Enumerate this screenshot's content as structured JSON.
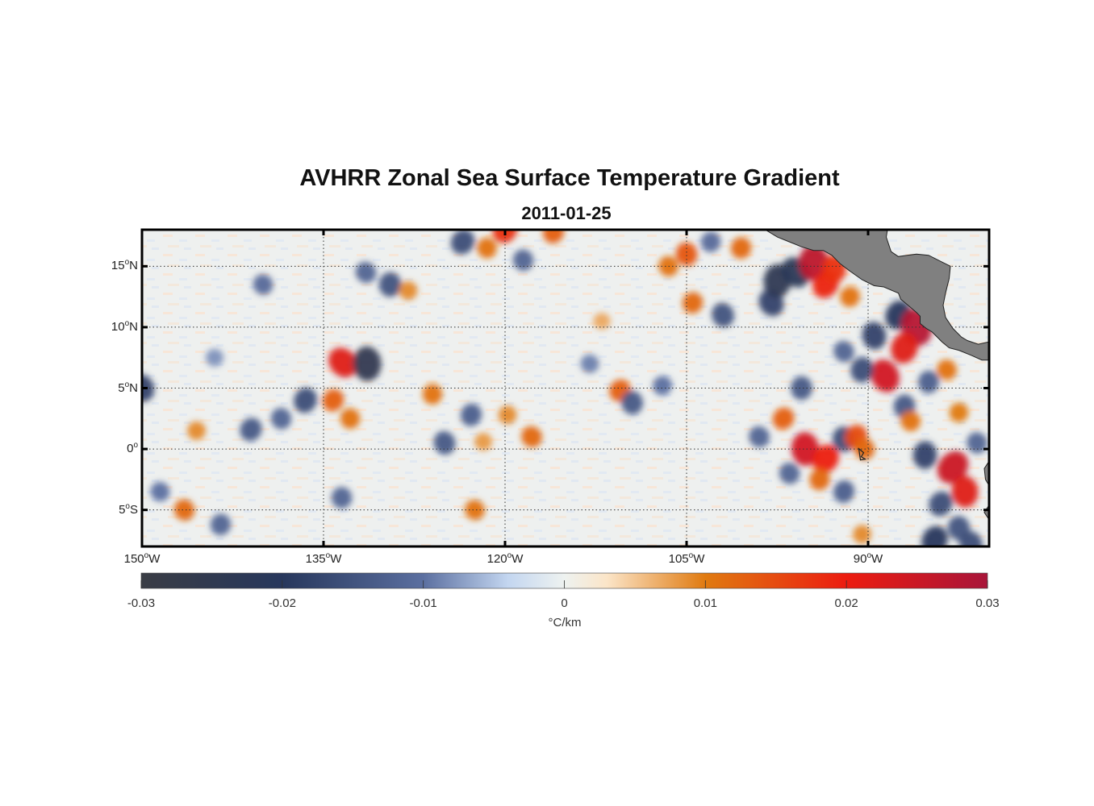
{
  "map": {
    "title": "AVHRR Zonal Sea Surface Temperature Gradient",
    "date": "2011-01-25",
    "region": {
      "lon_min": -150,
      "lon_max": -80,
      "lat_min": -8,
      "lat_max": 18
    },
    "lat_ticks": [
      {
        "value": 15,
        "num": "15",
        "hemi": "N"
      },
      {
        "value": 10,
        "num": "10",
        "hemi": "N"
      },
      {
        "value": 5,
        "num": "5",
        "hemi": "N"
      },
      {
        "value": 0,
        "num": "0",
        "hemi": ""
      },
      {
        "value": -5,
        "num": "5",
        "hemi": "S"
      }
    ],
    "lon_ticks": [
      {
        "value": -150,
        "num": "150",
        "hemi": "W"
      },
      {
        "value": -135,
        "num": "135",
        "hemi": "W"
      },
      {
        "value": -120,
        "num": "120",
        "hemi": "W"
      },
      {
        "value": -105,
        "num": "105",
        "hemi": "W"
      },
      {
        "value": -90,
        "num": "90",
        "hemi": "W"
      }
    ],
    "degree_symbol": "o",
    "land_color": "#808080",
    "colors": {
      "strong_negative": "#2b3a60",
      "mid_negative": "#5a6e9c",
      "weak_negative": "#b9cbe6",
      "neutral": "#eef0ef",
      "weak_positive": "#f8dcc4",
      "mid_positive": "#e0711c",
      "strong_positive": "#e4201c",
      "extreme_positive": "#b01030"
    }
  },
  "colorbar": {
    "unit": "°C/km",
    "ticks": [
      {
        "value": -0.03,
        "label": "-0.03"
      },
      {
        "value": -0.02,
        "label": "-0.02"
      },
      {
        "value": -0.01,
        "label": "-0.01"
      },
      {
        "value": 0,
        "label": "0"
      },
      {
        "value": 0.01,
        "label": "0.01"
      },
      {
        "value": 0.02,
        "label": "0.02"
      },
      {
        "value": 0.03,
        "label": "0.03"
      }
    ],
    "stops": [
      {
        "value": -0.03,
        "color": "#3a3d45"
      },
      {
        "value": -0.02,
        "color": "#27375c"
      },
      {
        "value": -0.01,
        "color": "#5b6fa0"
      },
      {
        "value": -0.004,
        "color": "#c3d6f0"
      },
      {
        "value": 0,
        "color": "#eef2f0"
      },
      {
        "value": 0.003,
        "color": "#fbe5c8"
      },
      {
        "value": 0.01,
        "color": "#e07a10"
      },
      {
        "value": 0.02,
        "color": "#ec1c10"
      },
      {
        "value": 0.03,
        "color": "#a8153a"
      }
    ]
  },
  "features": [
    {
      "lon": -133.4,
      "lat": 7.1,
      "value": 0.022
    },
    {
      "lon": -131.4,
      "lat": 7.0,
      "value": -0.025
    },
    {
      "lon": -134.2,
      "lat": 4.0,
      "value": 0.013
    },
    {
      "lon": -132.8,
      "lat": 2.5,
      "value": 0.011
    },
    {
      "lon": -141.0,
      "lat": 1.6,
      "value": -0.014
    },
    {
      "lon": -138.5,
      "lat": 2.5,
      "value": -0.012
    },
    {
      "lon": -136.5,
      "lat": 4.0,
      "value": -0.016
    },
    {
      "lon": -150.0,
      "lat": 5.0,
      "value": -0.018
    },
    {
      "lon": -145.5,
      "lat": 1.5,
      "value": 0.009
    },
    {
      "lon": -146.5,
      "lat": -5.0,
      "value": 0.012
    },
    {
      "lon": -143.5,
      "lat": -6.2,
      "value": -0.012
    },
    {
      "lon": -148.5,
      "lat": -3.5,
      "value": -0.01
    },
    {
      "lon": -129.5,
      "lat": 13.5,
      "value": -0.015
    },
    {
      "lon": -131.5,
      "lat": 14.5,
      "value": -0.012
    },
    {
      "lon": -128.0,
      "lat": 13.0,
      "value": 0.009
    },
    {
      "lon": -123.5,
      "lat": 17.0,
      "value": -0.016
    },
    {
      "lon": -121.5,
      "lat": 16.5,
      "value": 0.011
    },
    {
      "lon": -120.0,
      "lat": 18.0,
      "value": 0.018
    },
    {
      "lon": -118.5,
      "lat": 15.5,
      "value": -0.012
    },
    {
      "lon": -116.0,
      "lat": 17.8,
      "value": 0.013
    },
    {
      "lon": -125.0,
      "lat": 0.5,
      "value": -0.014
    },
    {
      "lon": -122.8,
      "lat": 2.8,
      "value": -0.013
    },
    {
      "lon": -121.8,
      "lat": 0.6,
      "value": 0.008
    },
    {
      "lon": -119.8,
      "lat": 2.8,
      "value": 0.009
    },
    {
      "lon": -117.8,
      "lat": 1.0,
      "value": 0.012
    },
    {
      "lon": -126.0,
      "lat": 4.5,
      "value": 0.011
    },
    {
      "lon": -122.5,
      "lat": -5.0,
      "value": 0.011
    },
    {
      "lon": -133.5,
      "lat": -4.0,
      "value": -0.012
    },
    {
      "lon": -110.5,
      "lat": 4.8,
      "value": 0.013
    },
    {
      "lon": -109.5,
      "lat": 3.8,
      "value": -0.014
    },
    {
      "lon": -107.0,
      "lat": 5.2,
      "value": -0.01
    },
    {
      "lon": -105.0,
      "lat": 16.0,
      "value": 0.014
    },
    {
      "lon": -104.5,
      "lat": 12.0,
      "value": 0.012
    },
    {
      "lon": -102.0,
      "lat": 11.0,
      "value": -0.015
    },
    {
      "lon": -103.0,
      "lat": 17.0,
      "value": -0.011
    },
    {
      "lon": -106.5,
      "lat": 15.0,
      "value": 0.011
    },
    {
      "lon": -100.5,
      "lat": 16.5,
      "value": 0.012
    },
    {
      "lon": -98.0,
      "lat": 12.0,
      "value": -0.018
    },
    {
      "lon": -97.5,
      "lat": 13.8,
      "value": -0.024
    },
    {
      "lon": -96.0,
      "lat": 14.5,
      "value": -0.022
    },
    {
      "lon": -94.5,
      "lat": 15.3,
      "value": 0.027
    },
    {
      "lon": -93.5,
      "lat": 13.5,
      "value": 0.019
    },
    {
      "lon": -92.8,
      "lat": 14.8,
      "value": 0.018
    },
    {
      "lon": -91.5,
      "lat": 12.5,
      "value": 0.011
    },
    {
      "lon": -89.5,
      "lat": 9.3,
      "value": -0.018
    },
    {
      "lon": -87.5,
      "lat": 11.0,
      "value": -0.02
    },
    {
      "lon": -86.0,
      "lat": 10.0,
      "value": 0.028
    },
    {
      "lon": -87.0,
      "lat": 8.3,
      "value": 0.022
    },
    {
      "lon": -88.6,
      "lat": 6.0,
      "value": 0.024
    },
    {
      "lon": -90.5,
      "lat": 6.5,
      "value": -0.016
    },
    {
      "lon": -92.0,
      "lat": 8.0,
      "value": -0.012
    },
    {
      "lon": -85.0,
      "lat": 5.5,
      "value": -0.013
    },
    {
      "lon": -83.5,
      "lat": 6.5,
      "value": 0.011
    },
    {
      "lon": -95.5,
      "lat": 5.0,
      "value": -0.014
    },
    {
      "lon": -97.0,
      "lat": 2.5,
      "value": 0.013
    },
    {
      "lon": -95.2,
      "lat": 0.0,
      "value": 0.024
    },
    {
      "lon": -93.5,
      "lat": -0.8,
      "value": 0.02
    },
    {
      "lon": -92.0,
      "lat": 0.8,
      "value": -0.016
    },
    {
      "lon": -91.0,
      "lat": 1.0,
      "value": 0.015
    },
    {
      "lon": -90.3,
      "lat": 0.0,
      "value": 0.012
    },
    {
      "lon": -92.0,
      "lat": -3.5,
      "value": -0.013
    },
    {
      "lon": -96.5,
      "lat": -2.0,
      "value": -0.012
    },
    {
      "lon": -94.0,
      "lat": -2.5,
      "value": 0.012
    },
    {
      "lon": -99.0,
      "lat": 1.0,
      "value": -0.012
    },
    {
      "lon": -87.0,
      "lat": 3.5,
      "value": -0.014
    },
    {
      "lon": -86.5,
      "lat": 2.3,
      "value": 0.011
    },
    {
      "lon": -85.3,
      "lat": -0.5,
      "value": -0.018
    },
    {
      "lon": -83.0,
      "lat": -1.5,
      "value": 0.025
    },
    {
      "lon": -82.0,
      "lat": -3.5,
      "value": 0.022
    },
    {
      "lon": -84.0,
      "lat": -4.5,
      "value": -0.016
    },
    {
      "lon": -82.5,
      "lat": -6.5,
      "value": -0.015
    },
    {
      "lon": -84.5,
      "lat": -7.5,
      "value": -0.02
    },
    {
      "lon": -81.5,
      "lat": -7.8,
      "value": -0.016
    },
    {
      "lon": -82.5,
      "lat": 3.0,
      "value": 0.01
    },
    {
      "lon": -81.0,
      "lat": 0.5,
      "value": -0.012
    },
    {
      "lon": -90.5,
      "lat": -7.0,
      "value": 0.009
    },
    {
      "lon": -140.0,
      "lat": 13.5,
      "value": -0.011
    },
    {
      "lon": -144.0,
      "lat": 7.5,
      "value": -0.008
    },
    {
      "lon": -113.0,
      "lat": 7.0,
      "value": -0.009
    },
    {
      "lon": -112.0,
      "lat": 10.5,
      "value": 0.007
    }
  ],
  "land": [
    [
      [
        -98.5,
        18
      ],
      [
        -97.5,
        17.4
      ],
      [
        -96.5,
        17.0
      ],
      [
        -95.5,
        16.6
      ],
      [
        -94.5,
        16.3
      ],
      [
        -93.7,
        16.3
      ],
      [
        -93.0,
        15.9
      ],
      [
        -92.3,
        15.2
      ],
      [
        -91.5,
        14.6
      ],
      [
        -90.5,
        13.9
      ],
      [
        -89.5,
        13.4
      ],
      [
        -88.7,
        13.3
      ],
      [
        -88.0,
        13.0
      ],
      [
        -87.5,
        12.8
      ],
      [
        -87.3,
        12.3
      ],
      [
        -86.7,
        11.8
      ],
      [
        -86.0,
        11.2
      ],
      [
        -85.7,
        10.9
      ],
      [
        -85.7,
        10.3
      ],
      [
        -85.2,
        9.9
      ],
      [
        -84.7,
        9.6
      ],
      [
        -83.9,
        8.8
      ],
      [
        -83.3,
        8.3
      ],
      [
        -82.5,
        8.1
      ],
      [
        -81.5,
        7.7
      ],
      [
        -80.6,
        7.3
      ],
      [
        -80,
        7.3
      ],
      [
        -80,
        8.8
      ],
      [
        -80.9,
        8.6
      ],
      [
        -81.8,
        8.9
      ],
      [
        -82.3,
        9.2
      ],
      [
        -83.0,
        9.9
      ],
      [
        -83.6,
        10.8
      ],
      [
        -83.8,
        11.8
      ],
      [
        -83.6,
        12.8
      ],
      [
        -83.3,
        14.0
      ],
      [
        -83.2,
        15.0
      ],
      [
        -84.0,
        15.4
      ],
      [
        -85.0,
        15.9
      ],
      [
        -86.0,
        16.0
      ],
      [
        -87.5,
        15.8
      ],
      [
        -88.1,
        16.2
      ],
      [
        -88.3,
        16.8
      ],
      [
        -88.5,
        17.4
      ],
      [
        -88.4,
        18
      ]
    ],
    [
      [
        -80,
        -1.0
      ],
      [
        -80.4,
        -1.6
      ],
      [
        -80.3,
        -2.5
      ],
      [
        -80.0,
        -3.0
      ]
    ],
    [
      [
        -80,
        -4.6
      ],
      [
        -80.4,
        -5.2
      ],
      [
        -80,
        -5.8
      ]
    ]
  ]
}
